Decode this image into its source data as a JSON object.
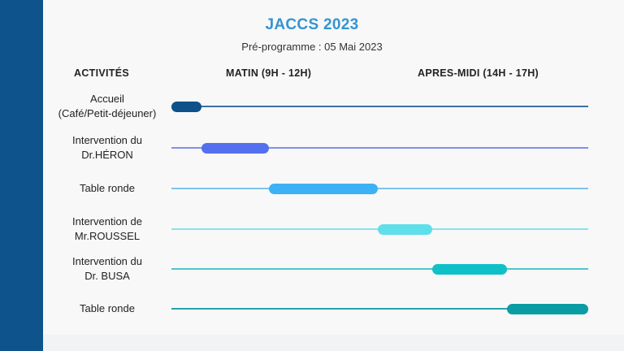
{
  "header": {
    "title": "JACCS 2023",
    "subtitle": "Pré-programme : 05 Mai 2023"
  },
  "columns": {
    "activities": "ACTIVITÉS",
    "morning": "MATIN (9H - 12H)",
    "afternoon": "APRES-MIDI (14H - 17H)"
  },
  "colors": {
    "side_bar": "#0f538c",
    "title": "#3593d4"
  },
  "rows": [
    {
      "label_lines": [
        "Accueil",
        "(Café/Petit-déjeuner)"
      ],
      "color": "#0f5188",
      "track_color": "#3f6fa3",
      "start": 0.0,
      "end": 0.073
    },
    {
      "label_lines": [
        "Intervention du",
        "Dr.HÉRON"
      ],
      "color": "#5470f0",
      "track_color": "#8190e6",
      "start": 0.073,
      "end": 0.234
    },
    {
      "label_lines": [
        "Table ronde"
      ],
      "color": "#3db1f5",
      "track_color": "#7cc4ee",
      "start": 0.234,
      "end": 0.496
    },
    {
      "label_lines": [
        "Intervention de",
        "Mr.ROUSSEL"
      ],
      "color": "#5edfea",
      "track_color": "#8ae2ea",
      "start": 0.496,
      "end": 0.625
    },
    {
      "label_lines": [
        "Intervention du",
        "Dr. BUSA"
      ],
      "color": "#10c0c9",
      "track_color": "#4fc6cc",
      "start": 0.625,
      "end": 0.805
    },
    {
      "label_lines": [
        "Table ronde"
      ],
      "color": "#0a9ca3",
      "track_color": "#2aa2a8",
      "start": 0.805,
      "end": 1.0
    }
  ]
}
